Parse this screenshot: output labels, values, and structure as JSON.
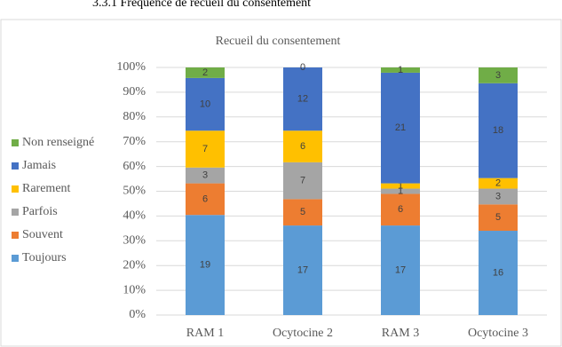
{
  "heading": "3.3.1    Fréquence de recueil du consentement",
  "chart_data": {
    "type": "bar",
    "stacking": "percent",
    "title": "Recueil du consentement",
    "categories": [
      "RAM 1",
      "Ocytocine 2",
      "RAM 3",
      "Ocytocine 3"
    ],
    "series": [
      {
        "name": "Toujours",
        "color": "#5b9bd5",
        "values": [
          19,
          17,
          17,
          16
        ]
      },
      {
        "name": "Souvent",
        "color": "#ed7d31",
        "values": [
          6,
          5,
          6,
          5
        ]
      },
      {
        "name": "Parfois",
        "color": "#a5a5a5",
        "values": [
          3,
          7,
          1,
          3
        ]
      },
      {
        "name": "Rarement",
        "color": "#ffc000",
        "values": [
          7,
          6,
          1,
          2
        ]
      },
      {
        "name": "Jamais",
        "color": "#4472c4",
        "values": [
          10,
          12,
          21,
          18
        ]
      },
      {
        "name": "Non renseigné",
        "color": "#70ad47",
        "values": [
          2,
          0,
          1,
          3
        ]
      }
    ],
    "ylim": [
      0,
      100
    ],
    "yticks": [
      {
        "value": 0,
        "label": "0%"
      },
      {
        "value": 10,
        "label": "10%"
      },
      {
        "value": 20,
        "label": "20%"
      },
      {
        "value": 30,
        "label": "30%"
      },
      {
        "value": 40,
        "label": "40%"
      },
      {
        "value": 50,
        "label": "50%"
      },
      {
        "value": 60,
        "label": "60%"
      },
      {
        "value": 70,
        "label": "70%"
      },
      {
        "value": 80,
        "label": "80%"
      },
      {
        "value": 90,
        "label": "90%"
      },
      {
        "value": 100,
        "label": "100%"
      }
    ],
    "grid": true,
    "legend": "left"
  }
}
